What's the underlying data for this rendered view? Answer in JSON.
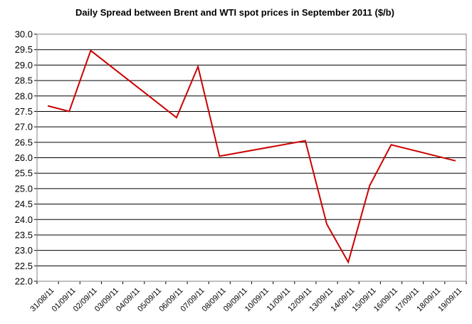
{
  "chart_data": {
    "type": "line",
    "title": "Daily Spread between Brent and WTI spot prices in September 2011 ($/b)",
    "xlabel": "",
    "ylabel": "",
    "ylim": [
      22.0,
      30.0
    ],
    "ytick_step": 0.5,
    "grid": true,
    "legend": "none",
    "colors": {
      "line": "#cc0000",
      "grid": "#000000",
      "frame": "#808080"
    },
    "categories": [
      "31/08/11",
      "01/09/11",
      "02/09/11",
      "03/09/11",
      "04/09/11",
      "05/09/11",
      "06/09/11",
      "07/09/11",
      "08/09/11",
      "09/09/11",
      "10/09/11",
      "11/09/11",
      "12/09/11",
      "13/09/11",
      "14/09/11",
      "15/09/11",
      "16/09/11",
      "17/09/11",
      "18/09/11",
      "19/09/11"
    ],
    "series": [
      {
        "points": [
          {
            "x": "31/08/11",
            "y": 27.68
          },
          {
            "x": "01/09/11",
            "y": 27.5
          },
          {
            "x": "02/09/11",
            "y": 29.47
          },
          {
            "x": "06/09/11",
            "y": 27.3
          },
          {
            "x": "07/09/11",
            "y": 28.95
          },
          {
            "x": "08/09/11",
            "y": 26.05
          },
          {
            "x": "12/09/11",
            "y": 26.55
          },
          {
            "x": "13/09/11",
            "y": 23.85
          },
          {
            "x": "14/09/11",
            "y": 22.62
          },
          {
            "x": "15/09/11",
            "y": 25.1
          },
          {
            "x": "16/09/11",
            "y": 26.42
          },
          {
            "x": "19/09/11",
            "y": 25.9
          }
        ]
      }
    ]
  }
}
